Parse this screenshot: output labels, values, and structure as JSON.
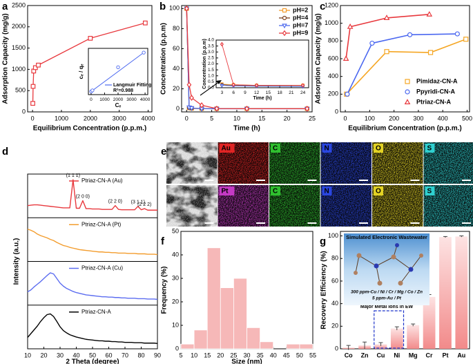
{
  "chart_data": [
    {
      "panel": "a",
      "type": "line",
      "marker": "square",
      "color": "#e8383d",
      "xlabel": "Equilibrium Concentration (p.p.m.)",
      "ylabel": "Adsorption Capacity (mg/g)",
      "x": [
        10,
        20,
        40,
        100,
        200,
        2000,
        3900
      ],
      "values": [
        200,
        600,
        960,
        1040,
        1100,
        1730,
        2090
      ],
      "xlim": [
        -170,
        4130
      ],
      "ylim": [
        0,
        2500
      ],
      "xticks": [
        0,
        1000,
        2000,
        3000,
        4000
      ],
      "yticks": [
        0,
        500,
        1000,
        1500,
        2000,
        2500
      ],
      "inset": {
        "type": "scatter",
        "marker": "circle",
        "color": "#4a67f0",
        "xlabel": "Cₑ",
        "ylabel": "cₑ / qₑ",
        "x": [
          10,
          100,
          2000,
          3900
        ],
        "values": [
          0.05,
          0.1,
          1.2,
          1.9
        ],
        "xlim": [
          -200,
          4200
        ],
        "ylim": [
          -0.1,
          2.1
        ],
        "xticks": [
          0,
          1000,
          2000,
          3000,
          4000
        ],
        "fit_label": "Langmuir Fitting",
        "annotation": "R²=0.988"
      }
    },
    {
      "panel": "b",
      "type": "line",
      "xlabel": "Time (h)",
      "ylabel": "Concentration (p.p.m)",
      "x": [
        0,
        0.5,
        1,
        3,
        6,
        12,
        24
      ],
      "series": [
        {
          "name": "pH=2",
          "color": "#f39c2c",
          "marker": "square",
          "values": [
            100,
            1,
            0.5,
            0.3,
            0.25,
            0.2,
            0.2
          ]
        },
        {
          "name": "pH=4",
          "color": "#7b3f1d",
          "marker": "circle",
          "values": [
            100,
            1.2,
            0.6,
            0.25,
            0.2,
            0.18,
            0.18
          ]
        },
        {
          "name": "pH=7",
          "color": "#4f6bed",
          "marker": "triangle-down",
          "values": [
            100,
            1.5,
            0.8,
            0.2,
            0.15,
            0.12,
            0.1
          ]
        },
        {
          "name": "pH=9",
          "color": "#e8383d",
          "marker": "diamond",
          "values": [
            100,
            24,
            11,
            3.65,
            0.25,
            0.2,
            0.2
          ]
        }
      ],
      "xlim": [
        -1,
        25
      ],
      "ylim": [
        -3,
        103
      ],
      "xticks": [
        0,
        5,
        10,
        15,
        20,
        25
      ],
      "yticks": [
        0,
        20,
        40,
        60,
        80,
        100
      ],
      "inset": {
        "xlabel": "Time (h)",
        "ylabel": "Concentration (p.p.m)",
        "xlim": [
          1.5,
          25.5
        ],
        "ylim": [
          0,
          4
        ],
        "xticks": [
          3,
          6,
          9,
          12,
          15,
          18,
          21,
          24
        ],
        "yticks": [
          {
            "value": 0,
            "label": "0.0"
          },
          0.5,
          {
            "value": 1,
            "label": "1.0"
          },
          1.5,
          {
            "value": 2,
            "label": "2.0"
          },
          2.5,
          {
            "value": 3,
            "label": "3.0"
          },
          3.5,
          {
            "value": 4,
            "label": "4.0"
          }
        ]
      }
    },
    {
      "panel": "c",
      "type": "line",
      "xlabel": "Equilibrium Concentration (p.p.m.)",
      "ylabel": "Adsorption Capacity (mg/g)",
      "series": [
        {
          "name": "Pimidaz-CN-A",
          "color": "#f5a623",
          "marker": "square",
          "x": [
            5,
            170,
            350,
            495
          ],
          "values": [
            200,
            680,
            670,
            820
          ]
        },
        {
          "name": "Ppyridi-CN-A",
          "color": "#4a67f0",
          "marker": "circle",
          "x": [
            8,
            110,
            265,
            460
          ],
          "values": [
            200,
            775,
            870,
            880
          ]
        },
        {
          "name": "Ptriaz-CN-A",
          "color": "#e8383d",
          "marker": "triangle",
          "x": [
            3,
            20,
            170,
            345
          ],
          "values": [
            600,
            960,
            1060,
            1100
          ]
        }
      ],
      "xlim": [
        -20,
        510
      ],
      "ylim": [
        0,
        1200
      ],
      "xticks": [
        0,
        100,
        200,
        300,
        400,
        500
      ],
      "yticks": [
        0,
        200,
        400,
        600,
        800,
        1000,
        1200
      ]
    },
    {
      "panel": "d",
      "type": "line",
      "xlabel": "2 Theta (degree)",
      "ylabel": "Intensity (a.u.)",
      "x": [
        10,
        12,
        14,
        16,
        18,
        20,
        22,
        24,
        26,
        28,
        30,
        32,
        34,
        36,
        38,
        40,
        42,
        44,
        46,
        48,
        50,
        52,
        54,
        56,
        58,
        60,
        62,
        64,
        66,
        68,
        70,
        72,
        74,
        76,
        78,
        80,
        82,
        84,
        86,
        88,
        90
      ],
      "series": [
        {
          "name": "Ptriaz-CN-A (Au)",
          "color": "#e8383d",
          "values": [
            0.32,
            0.33,
            0.34,
            0.34,
            0.33,
            0.32,
            0.31,
            0.3,
            0.29,
            0.28,
            0.27,
            0.26,
            0.26,
            0.26,
            1.0,
            0.25,
            0.25,
            0.45,
            0.24,
            0.24,
            0.23,
            0.23,
            0.23,
            0.22,
            0.22,
            0.22,
            0.22,
            0.32,
            0.22,
            0.21,
            0.21,
            0.21,
            0.21,
            0.21,
            0.3,
            0.21,
            0.24,
            0.2,
            0.2,
            0.2,
            0.2
          ]
        },
        {
          "name": "Ptriaz-CN-A (Pt)",
          "color": "#f39c2c",
          "values": [
            0.85,
            0.82,
            0.78,
            0.72,
            0.68,
            0.65,
            0.62,
            0.58,
            0.55,
            0.5,
            0.46,
            0.42,
            0.4,
            0.37,
            0.35,
            0.33,
            0.31,
            0.3,
            0.29,
            0.28,
            0.27,
            0.26,
            0.25,
            0.25,
            0.24,
            0.24,
            0.23,
            0.23,
            0.22,
            0.22,
            0.22,
            0.21,
            0.21,
            0.21,
            0.2,
            0.2,
            0.2,
            0.19,
            0.19,
            0.19,
            0.18
          ]
        },
        {
          "name": "Ptriaz-CN-A (Cu)",
          "color": "#5b6cf0",
          "values": [
            0.35,
            0.4,
            0.48,
            0.55,
            0.62,
            0.7,
            0.78,
            0.85,
            0.82,
            0.7,
            0.58,
            0.5,
            0.44,
            0.4,
            0.36,
            0.33,
            0.31,
            0.29,
            0.27,
            0.26,
            0.25,
            0.24,
            0.23,
            0.22,
            0.22,
            0.21,
            0.21,
            0.2,
            0.2,
            0.19,
            0.19,
            0.18,
            0.18,
            0.18,
            0.17,
            0.17,
            0.17,
            0.16,
            0.16,
            0.16,
            0.15
          ]
        },
        {
          "name": "Ptriaz-CN-A",
          "color": "#000000",
          "values": [
            0.3,
            0.4,
            0.5,
            0.6,
            0.72,
            0.82,
            0.9,
            0.92,
            0.85,
            0.72,
            0.58,
            0.48,
            0.42,
            0.37,
            0.34,
            0.31,
            0.29,
            0.27,
            0.25,
            0.24,
            0.23,
            0.22,
            0.21,
            0.21,
            0.2,
            0.2,
            0.19,
            0.19,
            0.18,
            0.18,
            0.17,
            0.17,
            0.17,
            0.16,
            0.16,
            0.16,
            0.15,
            0.15,
            0.15,
            0.15,
            0.14
          ]
        }
      ],
      "annotations": [
        {
          "text": "(1 1 1)",
          "x": 38
        },
        {
          "text": "(2 0 0)",
          "x": 44
        },
        {
          "text": "(2 2 0)",
          "x": 64
        },
        {
          "text": "(3 1 1)",
          "x": 78
        },
        {
          "text": "(2 2 2)",
          "x": 82
        }
      ],
      "xlim": [
        10,
        90
      ],
      "ylim": [
        0,
        1.15
      ],
      "xticks": [
        10,
        20,
        30,
        40,
        50,
        60,
        70,
        80,
        90
      ]
    },
    {
      "panel": "f",
      "type": "histogram",
      "xlabel": "Size (nm)",
      "ylabel": "Frequency (%)",
      "color": "#f6b8b8",
      "bins": [
        5,
        10,
        15,
        20,
        25,
        30,
        35,
        40,
        45,
        50,
        55
      ],
      "values": [
        2,
        8,
        43,
        26,
        30,
        9,
        3,
        0,
        2,
        2
      ],
      "xlim": [
        5,
        55
      ],
      "ylim": [
        0,
        50
      ],
      "xticks": [
        5,
        10,
        15,
        20,
        25,
        30,
        35,
        40,
        45,
        50,
        55
      ],
      "yticks": [
        0,
        10,
        20,
        30,
        40,
        50
      ]
    },
    {
      "panel": "g",
      "type": "bar",
      "ylabel": "Recovery Efficiency (%)",
      "color": "#f28a8a",
      "categories": [
        "Co",
        "Zn",
        "Cu",
        "Ni",
        "Mg",
        "Cr",
        "Pt",
        "Au"
      ],
      "values": [
        1,
        3,
        4,
        18,
        21,
        46,
        99,
        99.5
      ],
      "errors": [
        2,
        3,
        1.5,
        1.5,
        1,
        2,
        0.5,
        0.5
      ],
      "ylim": [
        0,
        104
      ],
      "yticks": [
        0,
        20,
        40,
        60,
        80,
        100
      ],
      "highlight": [
        "Cu",
        "Ni"
      ],
      "highlight_label": "Major Metal Ions in EW",
      "inset_title": "Simulated Electronic Wastewater",
      "inset_note_1": "300 ppm-Cu / Ni / Cr / Mg / Co / Zn",
      "inset_note_2": "5 ppm-Au / Pt"
    }
  ],
  "eds_maps": {
    "panel": "e",
    "rows": [
      [
        "Au",
        "C",
        "N",
        "O",
        "S"
      ],
      [
        "Pt",
        "C",
        "N",
        "O",
        "S"
      ]
    ]
  }
}
